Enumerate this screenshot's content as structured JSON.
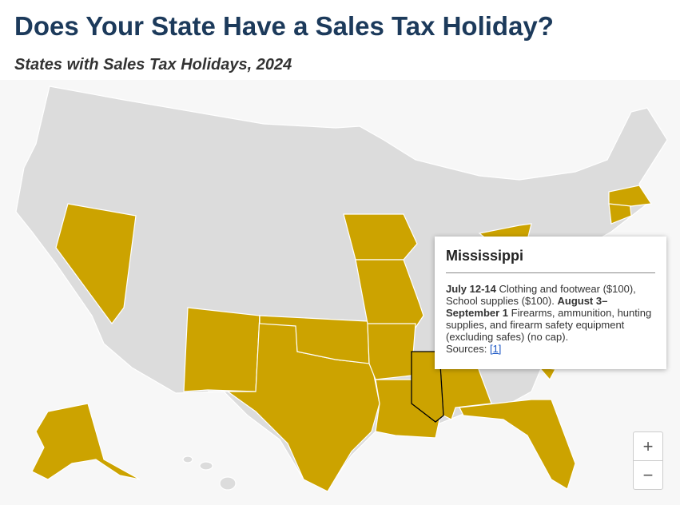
{
  "header": {
    "title": "Does Your State Have a Sales Tax Holiday?",
    "subtitle": "States with Sales Tax Holidays, 2024"
  },
  "tooltip": {
    "state": "Mississippi",
    "segments": [
      {
        "text": "July 12-14",
        "bold": true
      },
      {
        "text": " Clothing and footwear ($100), School supplies ($100). ",
        "bold": false
      },
      {
        "text": "August 3– September 1",
        "bold": true
      },
      {
        "text": " Firearms, ammunition, hunting supplies, and firearm safety equipment (excluding safes) (no cap).",
        "bold": false
      }
    ],
    "sources_label": "Sources:",
    "source_link": "[1]"
  },
  "zoom": {
    "in": "+",
    "out": "−"
  }
}
